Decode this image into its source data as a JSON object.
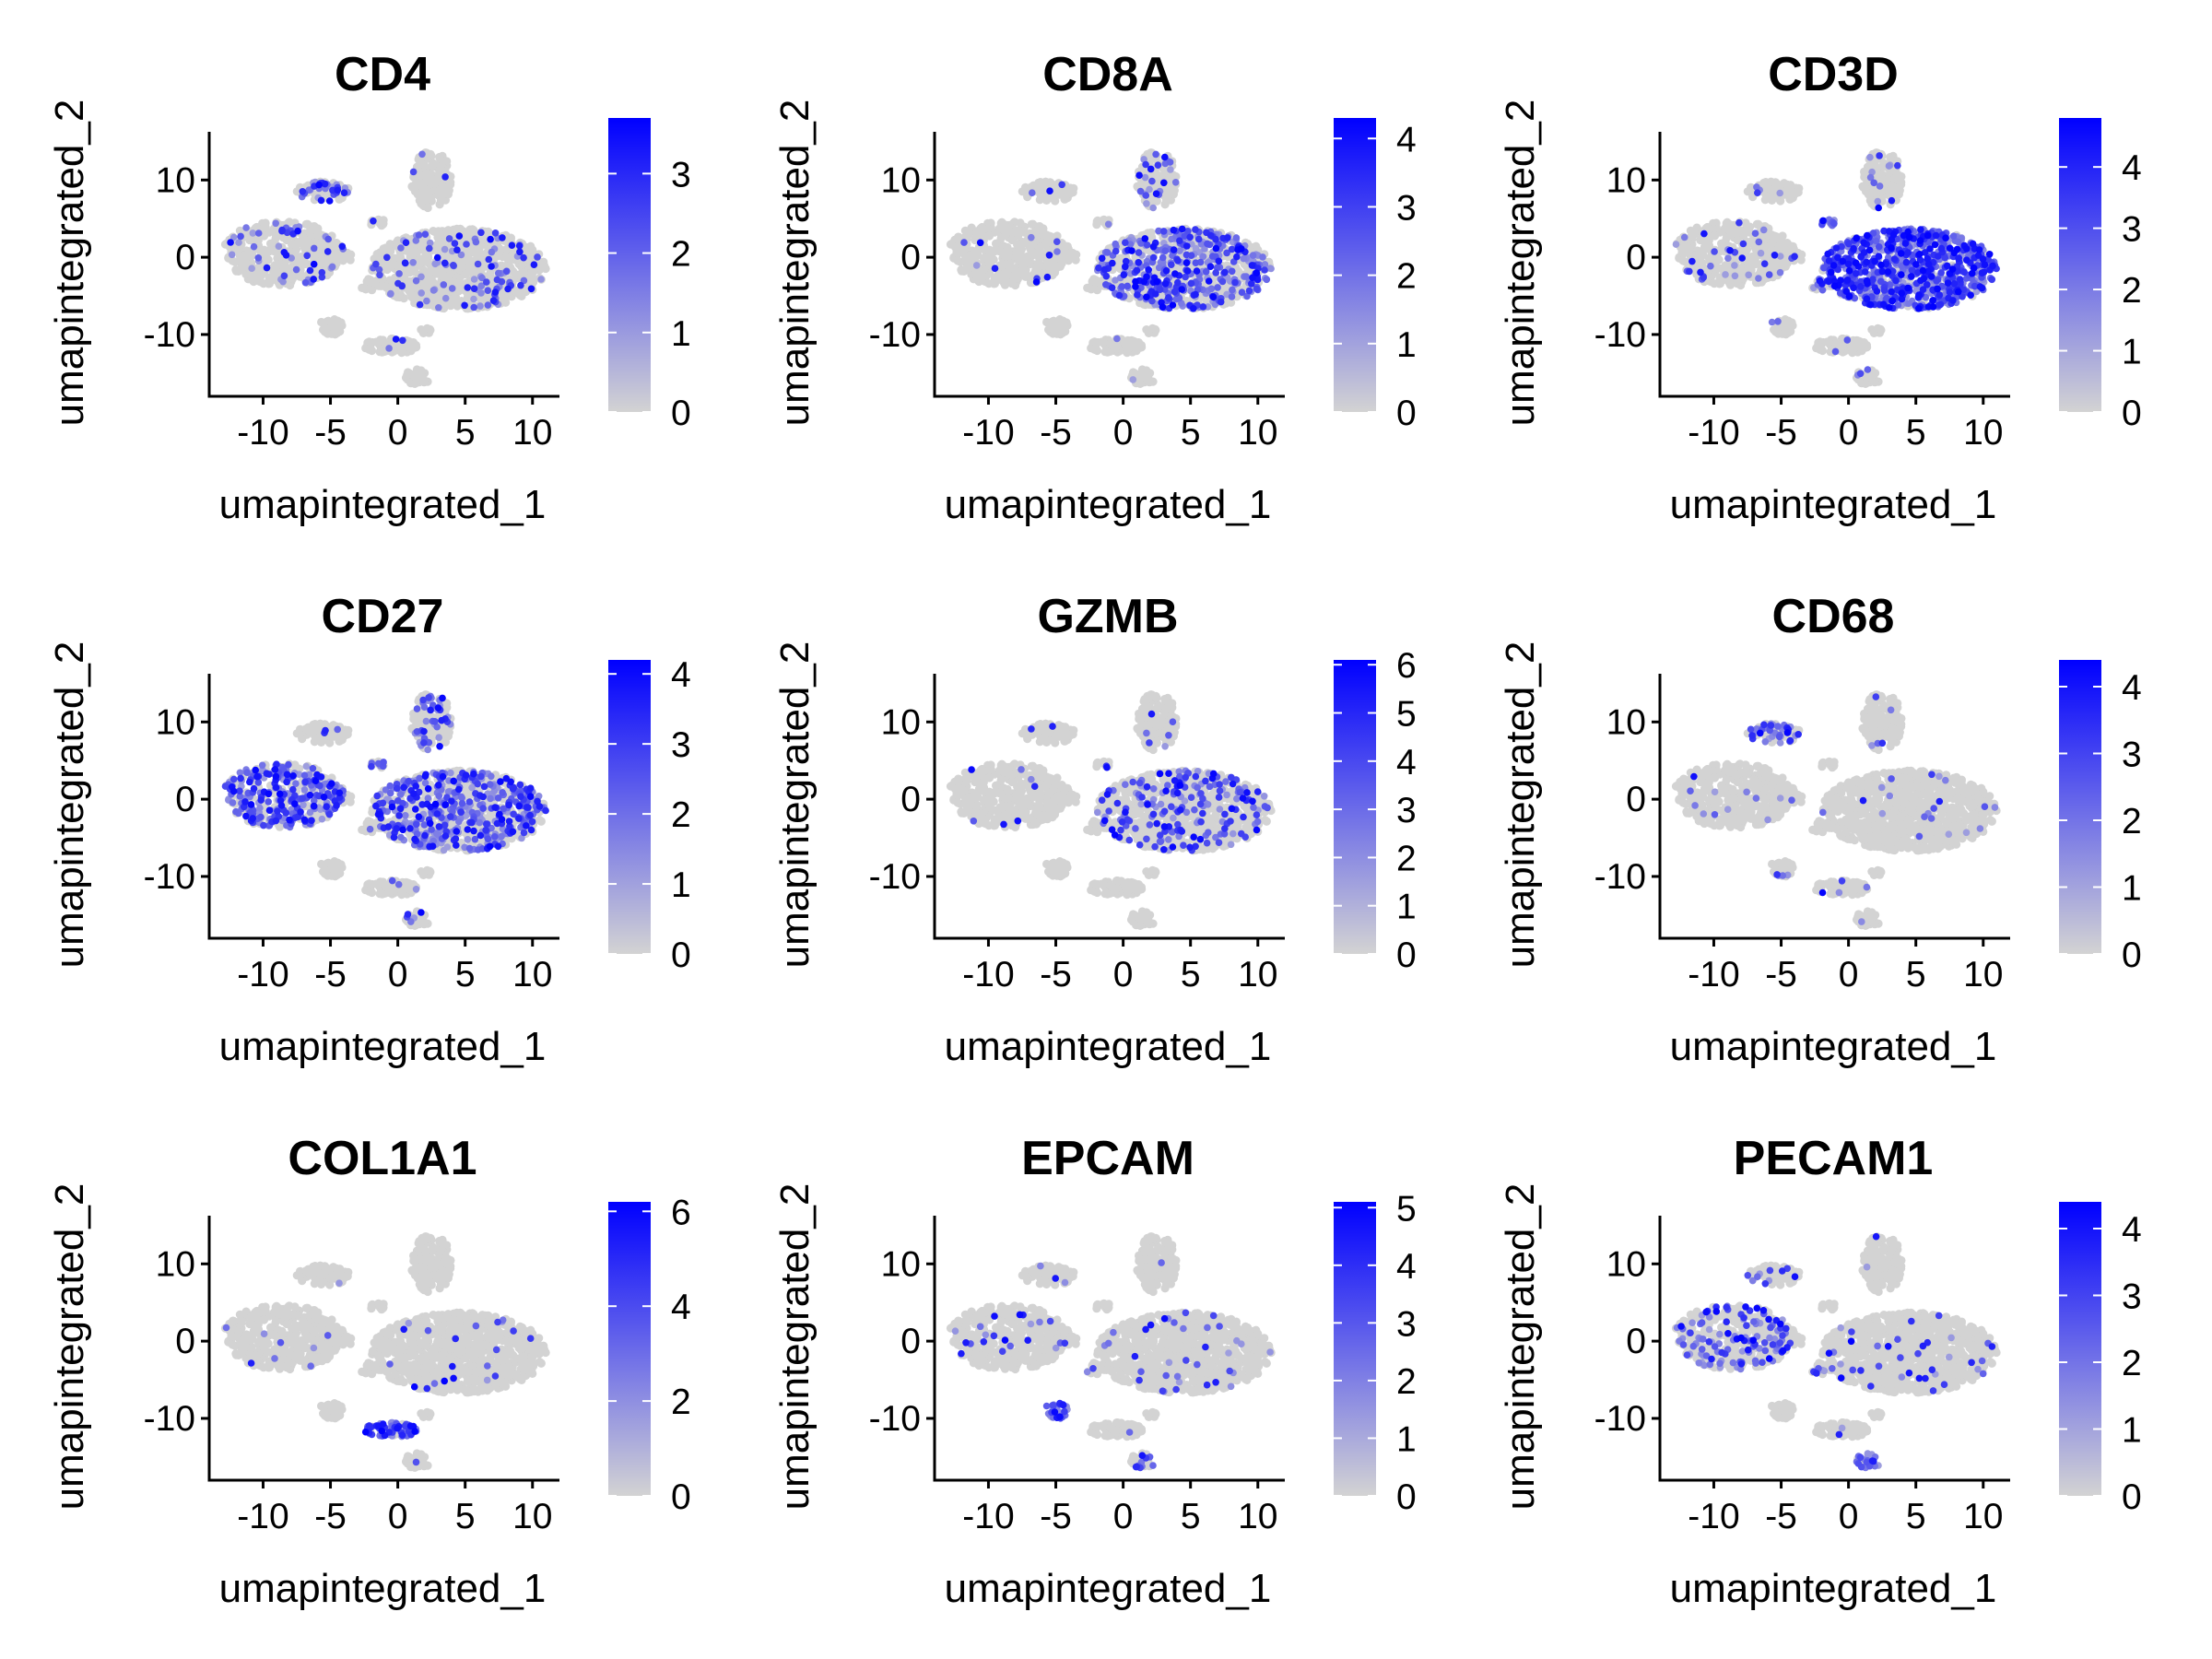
{
  "figure": {
    "background": "#ffffff",
    "low_color": "#d3d3d3",
    "high_color": "#0000ff"
  },
  "chart_data": [
    {
      "type": "scatter",
      "title": "CD4",
      "xlabel": "umapintegrated_1",
      "ylabel": "umapintegrated_2",
      "xlim": [
        -14,
        12
      ],
      "ylim": [
        -18,
        16
      ],
      "xticks": [
        -10,
        -5,
        0,
        5,
        10
      ],
      "xtick_labels": [
        "-10",
        "-5",
        "0",
        "5",
        "10"
      ],
      "yticks": [
        -10,
        0,
        10
      ],
      "ytick_labels": [
        "-10",
        "0",
        "10"
      ],
      "color_range": [
        0,
        3.7
      ],
      "legend_ticks": [
        0,
        1,
        2,
        3
      ],
      "legend_labels": [
        "0",
        "1",
        "2",
        "3"
      ],
      "expression": {
        "c1": 0.1,
        "c2": 0.5,
        "c3": 0.05,
        "c4": 0.02,
        "c5": 0.1,
        "c6": 0.02,
        "c7": 0.02,
        "c8": 0.02,
        "c9": 0.02,
        "c10": 0.02,
        "c11": 0.02
      }
    },
    {
      "type": "scatter",
      "title": "CD8A",
      "xlabel": "umapintegrated_1",
      "ylabel": "umapintegrated_2",
      "xlim": [
        -14,
        12
      ],
      "ylim": [
        -18,
        16
      ],
      "xticks": [
        -10,
        -5,
        0,
        5,
        10
      ],
      "xtick_labels": [
        "-10",
        "-5",
        "0",
        "5",
        "10"
      ],
      "yticks": [
        -10,
        0,
        10
      ],
      "ytick_labels": [
        "-10",
        "0",
        "10"
      ],
      "color_range": [
        0,
        4.3
      ],
      "legend_ticks": [
        0,
        1,
        2,
        3,
        4
      ],
      "legend_labels": [
        "0",
        "1",
        "2",
        "3",
        "4"
      ],
      "expression": {
        "c1": 0.02,
        "c2": 0.02,
        "c3": 0.15,
        "c4": 0.05,
        "c5": 0.45,
        "c6": 0.02,
        "c7": 0.02,
        "c8": 0.02,
        "c9": 0.02,
        "c10": 0.02,
        "c11": 0.02
      }
    },
    {
      "type": "scatter",
      "title": "CD3D",
      "xlabel": "umapintegrated_1",
      "ylabel": "umapintegrated_2",
      "xlim": [
        -14,
        12
      ],
      "ylim": [
        -18,
        16
      ],
      "xticks": [
        -10,
        -5,
        0,
        5,
        10
      ],
      "xtick_labels": [
        "-10",
        "-5",
        "0",
        "5",
        "10"
      ],
      "yticks": [
        -10,
        0,
        10
      ],
      "ytick_labels": [
        "-10",
        "0",
        "10"
      ],
      "color_range": [
        0,
        4.8
      ],
      "legend_ticks": [
        0,
        1,
        2,
        3,
        4
      ],
      "legend_labels": [
        "0",
        "1",
        "2",
        "3",
        "4"
      ],
      "expression": {
        "c1": 0.1,
        "c2": 0.05,
        "c3": 0.12,
        "c4": 0.9,
        "c5": 0.85,
        "c6": 0.3,
        "c7": 0.35,
        "c8": 0.05,
        "c9": 0.05,
        "c10": 0.05,
        "c11": 0.05
      }
    },
    {
      "type": "scatter",
      "title": "CD27",
      "xlabel": "umapintegrated_1",
      "ylabel": "umapintegrated_2",
      "xlim": [
        -14,
        12
      ],
      "ylim": [
        -18,
        16
      ],
      "xticks": [
        -10,
        -5,
        0,
        5,
        10
      ],
      "xtick_labels": [
        "-10",
        "-5",
        "0",
        "5",
        "10"
      ],
      "yticks": [
        -10,
        0,
        10
      ],
      "ytick_labels": [
        "-10",
        "0",
        "10"
      ],
      "color_range": [
        0,
        4.2
      ],
      "legend_ticks": [
        0,
        1,
        2,
        3,
        4
      ],
      "legend_labels": [
        "0",
        "1",
        "2",
        "3",
        "4"
      ],
      "expression": {
        "c1": 0.6,
        "c2": 0.02,
        "c3": 0.4,
        "c4": 0.4,
        "c5": 0.45,
        "c6": 0.05,
        "c7": 0.05,
        "c8": 0.05,
        "c9": 0.05,
        "c10": 0.05,
        "c11": 0.02
      }
    },
    {
      "type": "scatter",
      "title": "GZMB",
      "xlabel": "umapintegrated_1",
      "ylabel": "umapintegrated_2",
      "xlim": [
        -14,
        12
      ],
      "ylim": [
        -18,
        16
      ],
      "xticks": [
        -10,
        -5,
        0,
        5,
        10
      ],
      "xtick_labels": [
        "-10",
        "-5",
        "0",
        "5",
        "10"
      ],
      "yticks": [
        -10,
        0,
        10
      ],
      "ytick_labels": [
        "-10",
        "0",
        "10"
      ],
      "color_range": [
        0,
        6.1
      ],
      "legend_ticks": [
        0,
        1,
        2,
        3,
        4,
        5,
        6
      ],
      "legend_labels": [
        "0",
        "1",
        "2",
        "3",
        "4",
        "5",
        "6"
      ],
      "expression": {
        "c1": 0.02,
        "c2": 0.05,
        "c3": 0.05,
        "c4": 0.3,
        "c5": 0.2,
        "c6": 0.02,
        "c7": 0.02,
        "c8": 0.02,
        "c9": 0.02,
        "c10": 0.02,
        "c11": 0.02
      }
    },
    {
      "type": "scatter",
      "title": "CD68",
      "xlabel": "umapintegrated_1",
      "ylabel": "umapintegrated_2",
      "xlim": [
        -14,
        12
      ],
      "ylim": [
        -18,
        16
      ],
      "xticks": [
        -10,
        -5,
        0,
        5,
        10
      ],
      "xtick_labels": [
        "-10",
        "-5",
        "0",
        "5",
        "10"
      ],
      "yticks": [
        -10,
        0,
        10
      ],
      "ytick_labels": [
        "-10",
        "0",
        "10"
      ],
      "color_range": [
        0,
        4.4
      ],
      "legend_ticks": [
        0,
        1,
        2,
        3,
        4
      ],
      "legend_labels": [
        "0",
        "1",
        "2",
        "3",
        "4"
      ],
      "expression": {
        "c1": 0.02,
        "c2": 0.5,
        "c3": 0.02,
        "c4": 0.1,
        "c5": 0.02,
        "c6": 0.05,
        "c7": 0.05,
        "c8": 0.05,
        "c9": 0.05,
        "c10": 0.05,
        "c11": 0.02
      }
    },
    {
      "type": "scatter",
      "title": "COL1A1",
      "xlabel": "umapintegrated_1",
      "ylabel": "umapintegrated_2",
      "xlim": [
        -14,
        12
      ],
      "ylim": [
        -18,
        16
      ],
      "xticks": [
        -10,
        -5,
        0,
        5,
        10
      ],
      "xtick_labels": [
        "-10",
        "-5",
        "0",
        "5",
        "10"
      ],
      "yticks": [
        -10,
        0,
        10
      ],
      "ytick_labels": [
        "-10",
        "0",
        "10"
      ],
      "color_range": [
        0,
        6.2
      ],
      "legend_ticks": [
        0,
        2,
        4,
        6
      ],
      "legend_labels": [
        "0",
        "2",
        "4",
        "6"
      ],
      "expression": {
        "c1": 0.02,
        "c2": 0.02,
        "c3": 0.02,
        "c4": 0.02,
        "c5": 0.02,
        "c6": 0.02,
        "c7": 0.02,
        "c8": 0.02,
        "c9": 0.9,
        "c10": 0.02,
        "c11": 0.02
      }
    },
    {
      "type": "scatter",
      "title": "EPCAM",
      "xlabel": "umapintegrated_1",
      "ylabel": "umapintegrated_2",
      "xlim": [
        -14,
        12
      ],
      "ylim": [
        -18,
        16
      ],
      "xticks": [
        -10,
        -5,
        0,
        5,
        10
      ],
      "xtick_labels": [
        "-10",
        "-5",
        "0",
        "5",
        "10"
      ],
      "yticks": [
        -10,
        0,
        10
      ],
      "ytick_labels": [
        "-10",
        "0",
        "10"
      ],
      "color_range": [
        0,
        5.1
      ],
      "legend_ticks": [
        0,
        1,
        2,
        3,
        4,
        5
      ],
      "legend_labels": [
        "0",
        "1",
        "2",
        "3",
        "4",
        "5"
      ],
      "expression": {
        "c1": 0.05,
        "c2": 0.05,
        "c3": 0.02,
        "c4": 0.02,
        "c5": 0.05,
        "c6": 0.05,
        "c7": 0.1,
        "c8": 0.9,
        "c9": 0.05,
        "c10": 0.3,
        "c11": 0.02
      }
    },
    {
      "type": "scatter",
      "title": "PECAM1",
      "xlabel": "umapintegrated_1",
      "ylabel": "umapintegrated_2",
      "xlim": [
        -14,
        12
      ],
      "ylim": [
        -18,
        16
      ],
      "xticks": [
        -10,
        -5,
        0,
        5,
        10
      ],
      "xtick_labels": [
        "-10",
        "-5",
        "0",
        "5",
        "10"
      ],
      "yticks": [
        -10,
        0,
        10
      ],
      "ytick_labels": [
        "-10",
        "0",
        "10"
      ],
      "color_range": [
        0,
        4.4
      ],
      "legend_ticks": [
        0,
        1,
        2,
        3,
        4
      ],
      "legend_labels": [
        "0",
        "1",
        "2",
        "3",
        "4"
      ],
      "expression": {
        "c1": 0.3,
        "c2": 0.1,
        "c3": 0.02,
        "c4": 0.02,
        "c5": 0.05,
        "c6": 0.05,
        "c7": 0.2,
        "c8": 0.02,
        "c9": 0.02,
        "c10": 0.95,
        "c11": 0.02
      }
    }
  ],
  "clusters": [
    {
      "id": "c1",
      "cx": -8.5,
      "cy": 0.5,
      "rx": 4.5,
      "ry": 4.2
    },
    {
      "id": "c2",
      "cx": -5.5,
      "cy": 8.5,
      "rx": 2.0,
      "ry": 1.3
    },
    {
      "id": "c3",
      "cx": 2.5,
      "cy": 10.0,
      "rx": 1.5,
      "ry": 3.8
    },
    {
      "id": "c4",
      "cx": -1.5,
      "cy": 4.5,
      "rx": 0.7,
      "ry": 0.5
    },
    {
      "id": "c5",
      "cx": 4.5,
      "cy": -1.5,
      "rx": 6.5,
      "ry": 5.2
    },
    {
      "id": "c6",
      "cx": -4.0,
      "cy": 0.0,
      "rx": 0.8,
      "ry": 0.6
    },
    {
      "id": "c7",
      "cx": -2.0,
      "cy": -3.5,
      "rx": 0.9,
      "ry": 0.8
    },
    {
      "id": "c8",
      "cx": -5.0,
      "cy": -9.0,
      "rx": 0.9,
      "ry": 1.2
    },
    {
      "id": "c9",
      "cx": -0.5,
      "cy": -11.5,
      "rx": 2.0,
      "ry": 1.0
    },
    {
      "id": "c10",
      "cx": 1.5,
      "cy": -15.5,
      "rx": 1.0,
      "ry": 1.0
    },
    {
      "id": "c11",
      "cx": 2.0,
      "cy": -9.5,
      "rx": 0.5,
      "ry": 0.4
    }
  ]
}
